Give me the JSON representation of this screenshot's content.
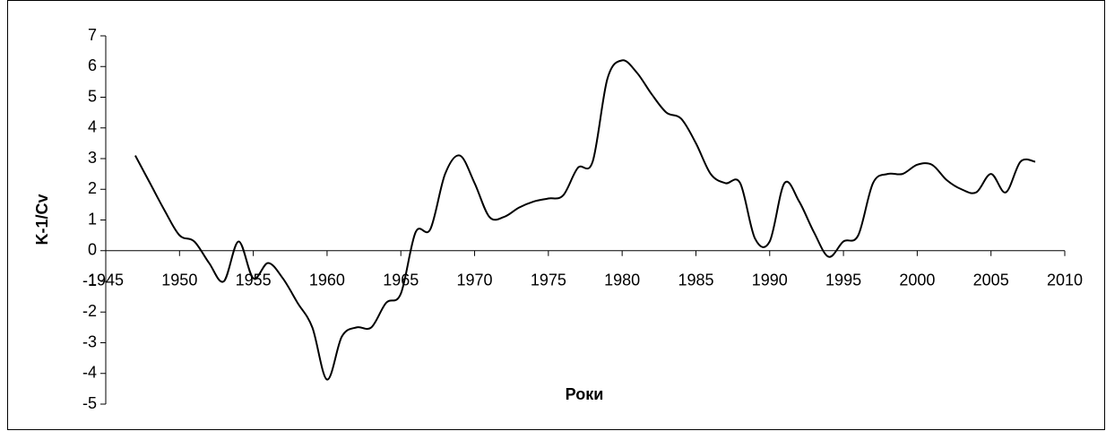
{
  "chart_data": {
    "type": "line",
    "xlabel": "Роки",
    "ylabel": "K-1/Cv",
    "x": [
      1947,
      1948,
      1949,
      1950,
      1951,
      1952,
      1953,
      1954,
      1955,
      1956,
      1957,
      1958,
      1959,
      1960,
      1961,
      1962,
      1963,
      1964,
      1965,
      1966,
      1967,
      1968,
      1969,
      1970,
      1971,
      1972,
      1973,
      1974,
      1975,
      1976,
      1977,
      1978,
      1979,
      1980,
      1981,
      1982,
      1983,
      1984,
      1985,
      1986,
      1987,
      1988,
      1989,
      1990,
      1991,
      1992,
      1993,
      1994,
      1995,
      1996,
      1997,
      1998,
      1999,
      2000,
      2001,
      2002,
      2003,
      2004,
      2005,
      2006,
      2007,
      2008
    ],
    "series": [
      {
        "color": "#000000",
        "values": [
          3.1,
          2.2,
          1.3,
          0.5,
          0.3,
          -0.4,
          -1.0,
          0.3,
          -0.9,
          -0.4,
          -0.9,
          -1.7,
          -2.5,
          -4.2,
          -2.8,
          -2.5,
          -2.5,
          -1.7,
          -1.4,
          0.6,
          0.7,
          2.5,
          3.1,
          2.2,
          1.1,
          1.1,
          1.4,
          1.6,
          1.7,
          1.8,
          2.7,
          2.9,
          5.6,
          6.2,
          5.8,
          5.1,
          4.5,
          4.3,
          3.5,
          2.5,
          2.2,
          2.2,
          0.4,
          0.3,
          2.2,
          1.6,
          0.6,
          -0.2,
          0.3,
          0.5,
          2.2,
          2.5,
          2.5,
          2.8,
          2.8,
          2.3,
          2.0,
          1.9,
          2.5,
          1.9,
          2.9,
          2.9
        ]
      }
    ],
    "xlim": [
      1945,
      2010
    ],
    "xticks": [
      1945,
      1950,
      1955,
      1960,
      1965,
      1970,
      1975,
      1980,
      1985,
      1990,
      1995,
      2000,
      2005,
      2010
    ],
    "ylim": [
      -5,
      7
    ],
    "yticks": [
      -5,
      -4,
      -3,
      -2,
      -1,
      0,
      1,
      2,
      3,
      4,
      5,
      6,
      7
    ],
    "grid": false
  }
}
